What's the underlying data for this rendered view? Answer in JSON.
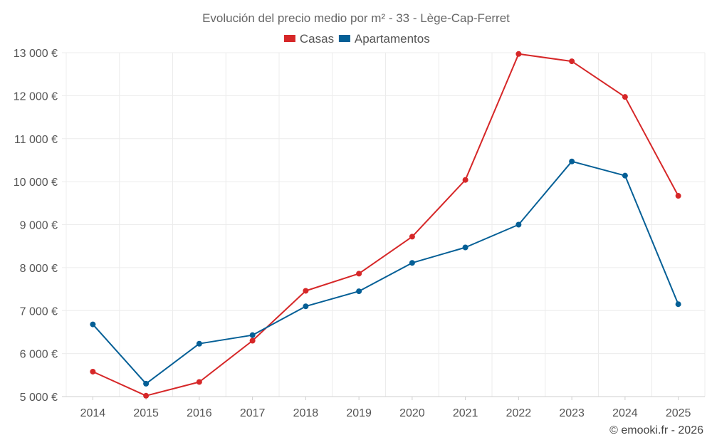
{
  "chart_data": {
    "type": "line",
    "title": "Evolución del precio medio por m² - 33 - Lège-Cap-Ferret",
    "categories": [
      "2014",
      "2015",
      "2016",
      "2017",
      "2018",
      "2019",
      "2020",
      "2021",
      "2022",
      "2023",
      "2024",
      "2025"
    ],
    "series": [
      {
        "name": "Casas",
        "color": "#d62728",
        "values": [
          5580,
          5020,
          5340,
          6300,
          7460,
          7860,
          8720,
          10040,
          12970,
          12800,
          11970,
          9670
        ]
      },
      {
        "name": "Apartamentos",
        "color": "#045f96",
        "values": [
          6680,
          5300,
          6230,
          6430,
          7100,
          7450,
          8110,
          8470,
          9000,
          10470,
          10140,
          7150
        ]
      }
    ],
    "ylim": [
      5000,
      13000
    ],
    "yticks": [
      5000,
      6000,
      7000,
      8000,
      9000,
      10000,
      11000,
      12000,
      13000
    ],
    "ytick_labels": [
      "5 000 €",
      "6 000 €",
      "7 000 €",
      "8 000 €",
      "9 000 €",
      "10 000 €",
      "11 000 €",
      "12 000 €",
      "13 000 €"
    ],
    "grid": true,
    "legend_position": "top-center",
    "xlabel": "",
    "ylabel": ""
  },
  "copyright": "© emooki.fr - 2026"
}
